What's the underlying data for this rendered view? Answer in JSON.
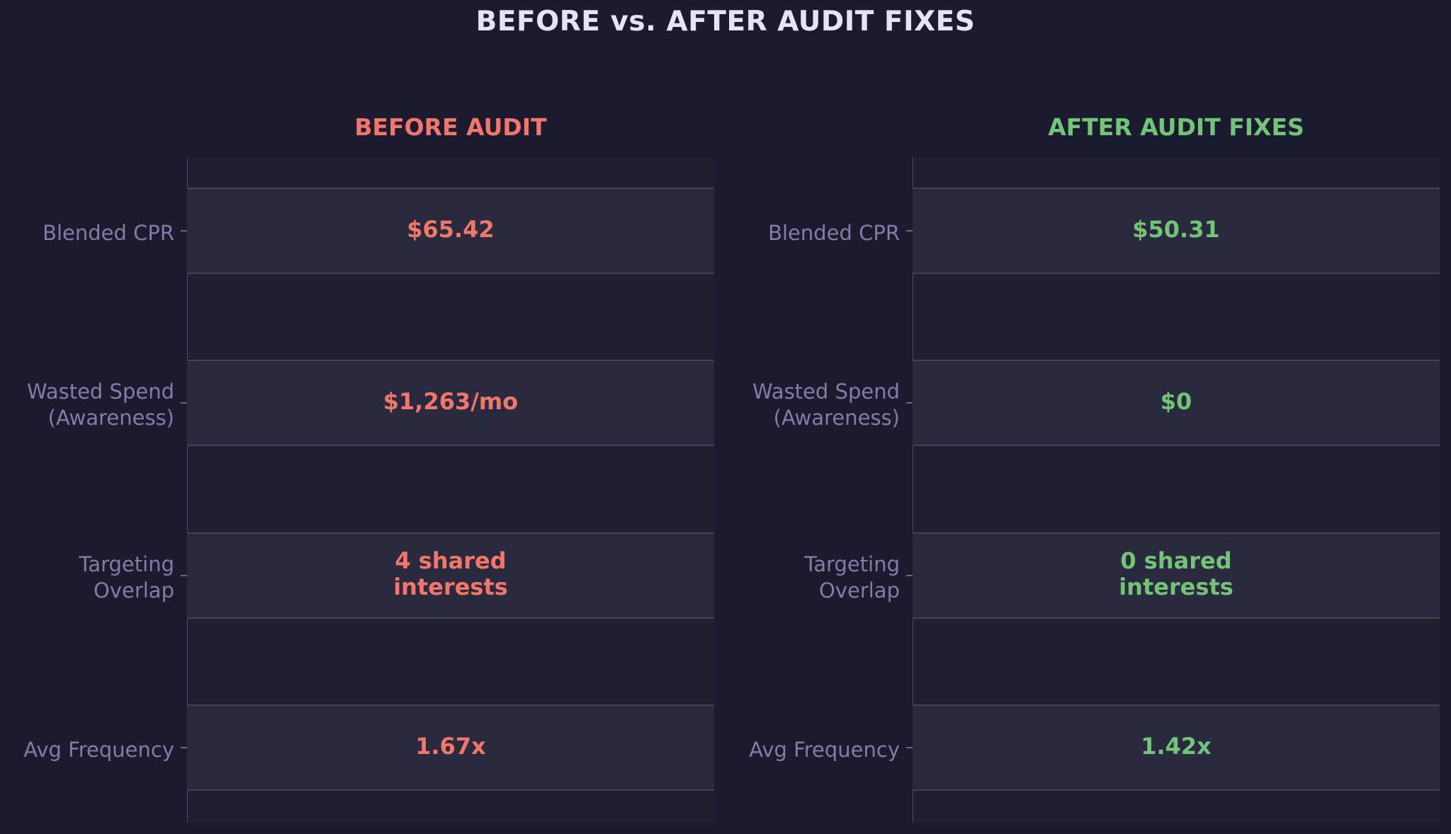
{
  "title": "BEFORE vs. AFTER AUDIT FIXES",
  "colors": {
    "background": "#1b1b2f",
    "panel": "#1f1f2f",
    "row": "#292a3e",
    "before": "#f2766a",
    "after": "#72c476",
    "label": "#7f7ea3",
    "title": "#e4e4f6"
  },
  "chart_data": {
    "type": "table",
    "title": "BEFORE vs. AFTER AUDIT FIXES",
    "metrics": [
      "Blended CPR",
      "Wasted Spend\n(Awareness)",
      "Targeting\nOverlap",
      "Avg Frequency"
    ],
    "panels": [
      {
        "title": "BEFORE AUDIT",
        "color": "#f2766a",
        "values": [
          "$65.42",
          "$1,263/mo",
          "4 shared\ninterests",
          "1.67x"
        ]
      },
      {
        "title": "AFTER AUDIT FIXES",
        "color": "#72c476",
        "values": [
          "$50.31",
          "$0",
          "0 shared\ninterests",
          "1.42x"
        ]
      }
    ]
  }
}
